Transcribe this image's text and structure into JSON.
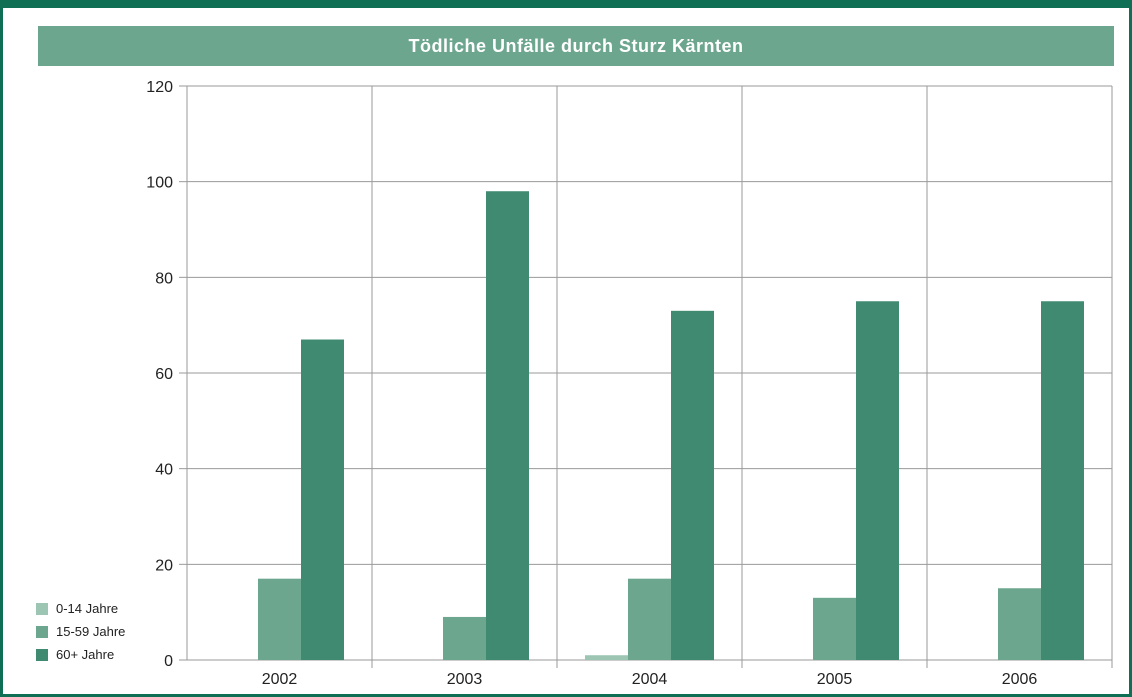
{
  "chart_data": {
    "type": "bar",
    "title": "Tödliche Unfälle durch Sturz Kärnten",
    "xlabel": "",
    "ylabel": "",
    "categories": [
      "2002",
      "2003",
      "2004",
      "2005",
      "2006"
    ],
    "ylim": [
      0,
      120
    ],
    "yticks": [
      0,
      20,
      40,
      60,
      80,
      100,
      120
    ],
    "grid": true,
    "legend_position": "bottom-left",
    "series": [
      {
        "name": "0-14 Jahre",
        "color": "#9cc5b3",
        "values": [
          0,
          0,
          1,
          0,
          0
        ]
      },
      {
        "name": "15-59 Jahre",
        "color": "#6da68e",
        "values": [
          17,
          9,
          17,
          13,
          15
        ]
      },
      {
        "name": "60+ Jahre",
        "color": "#3f8a70",
        "values": [
          67,
          98,
          73,
          75,
          75
        ]
      }
    ]
  }
}
